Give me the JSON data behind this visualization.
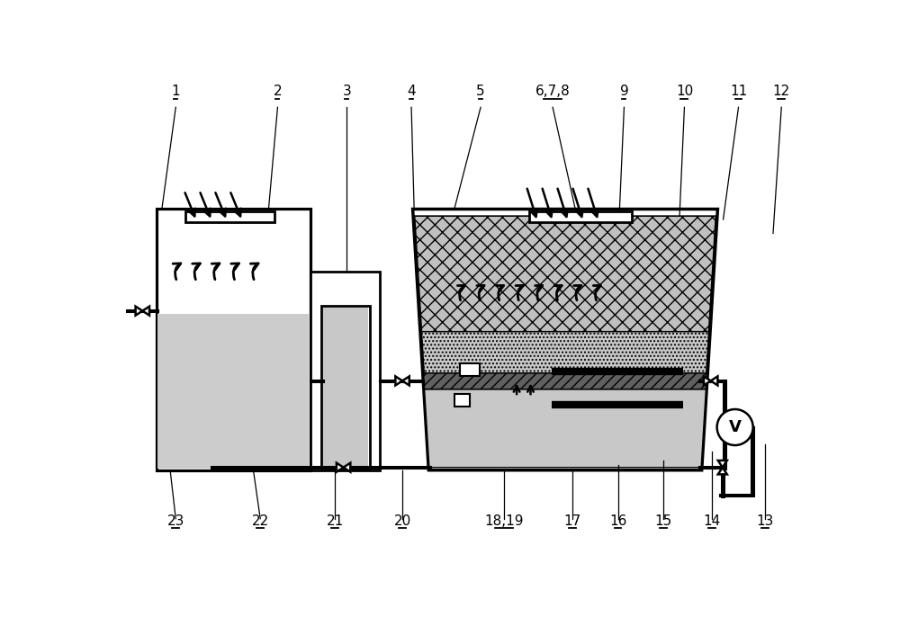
{
  "bg_color": "#ffffff",
  "line_color": "#000000",
  "lw_main": 2.0,
  "lw_thin": 1.2,
  "gray_fill": "#cccccc",
  "dot_fill": "#c8c8c8",
  "label_fontsize": 11
}
